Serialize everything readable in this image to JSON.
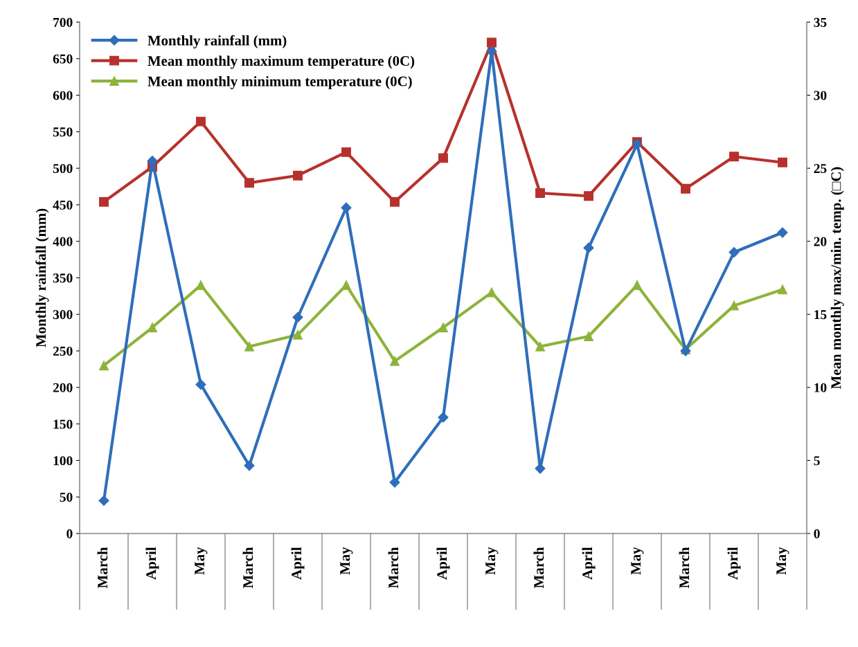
{
  "chart_data": {
    "type": "line",
    "categories": [
      "March",
      "April",
      "May",
      "March",
      "April",
      "May",
      "March",
      "April",
      "May",
      "March",
      "April",
      "May",
      "March",
      "April",
      "May"
    ],
    "series": [
      {
        "name": "Monthly rainfall (mm)",
        "color": "#2f6eba",
        "marker": "diamond",
        "values": [
          45,
          510,
          204,
          93,
          296,
          446,
          70,
          159,
          660,
          89,
          391,
          533,
          250,
          385,
          412
        ]
      },
      {
        "name": "Mean monthly maximum temperature (0C)",
        "color": "#b7312c",
        "marker": "square",
        "axis": "y2",
        "values": [
          22.7,
          25.1,
          28.2,
          24.0,
          24.5,
          26.1,
          22.7,
          25.7,
          33.6,
          23.3,
          23.1,
          26.8,
          23.6,
          25.8,
          25.4
        ]
      },
      {
        "name": "Mean monthly minimum temperature (0C)",
        "color": "#8db33a",
        "marker": "triangle",
        "axis": "y2",
        "values": [
          11.5,
          14.1,
          17.0,
          12.8,
          13.6,
          17.0,
          11.8,
          14.1,
          16.5,
          12.8,
          13.5,
          17.0,
          12.6,
          15.6,
          16.7
        ]
      }
    ],
    "ylabel": "Monthly rainfall (mm)",
    "y2label": "Mean monthly max/min. temp. (□C)",
    "ylim": [
      0,
      700
    ],
    "yticks": [
      0,
      50,
      100,
      150,
      200,
      250,
      300,
      350,
      400,
      450,
      500,
      550,
      600,
      650,
      700
    ],
    "y2lim": [
      0,
      35
    ],
    "y2ticks": [
      0,
      5,
      10,
      15,
      20,
      25,
      30,
      35
    ],
    "grid": false,
    "legend": "top left",
    "line_style": "solid"
  }
}
